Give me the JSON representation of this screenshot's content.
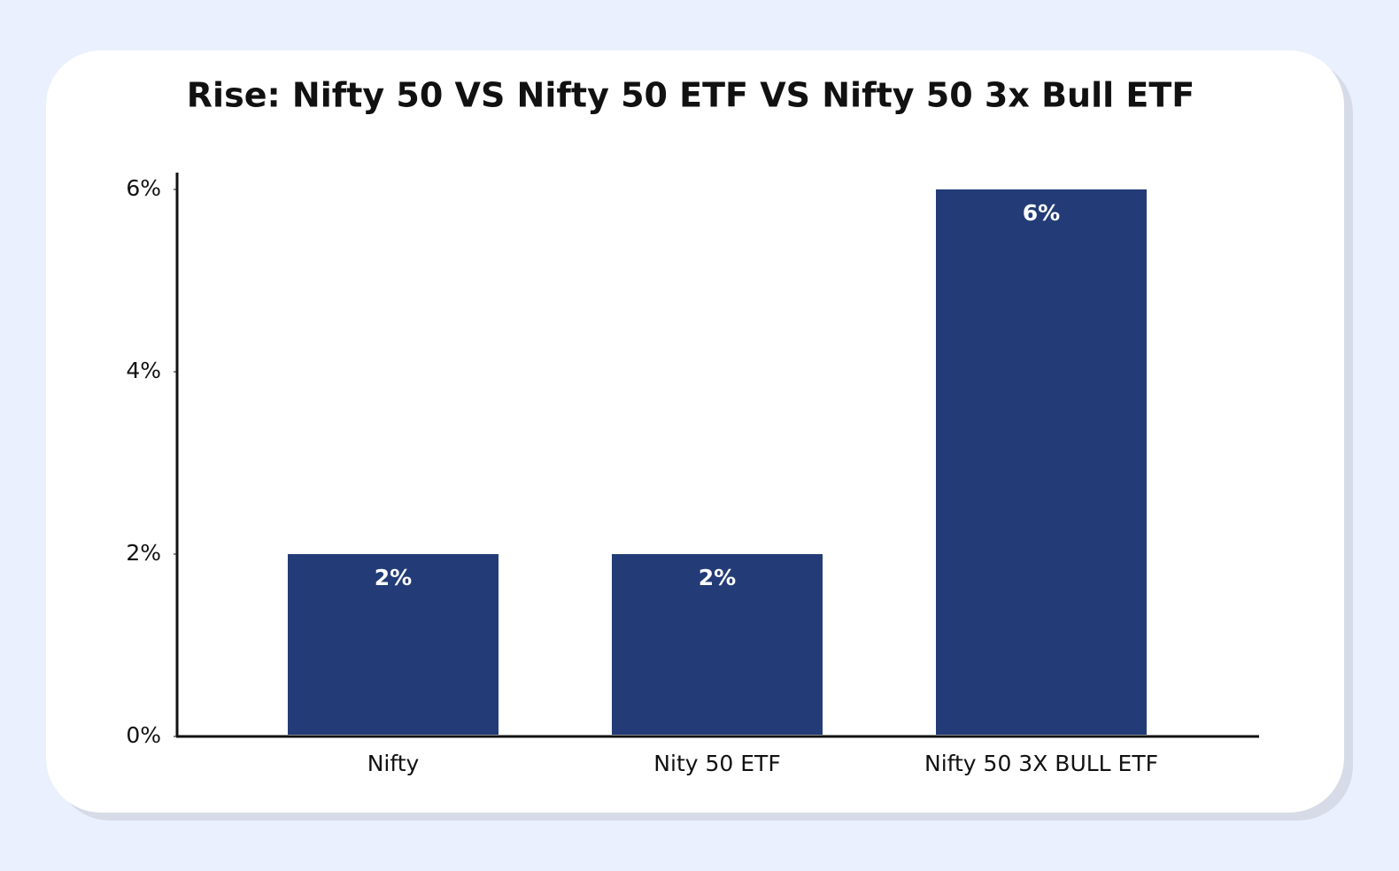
{
  "chart_data": {
    "type": "bar",
    "title": "Rise: Nifty 50 VS Nifty 50 ETF VS Nifty 50 3x Bull ETF",
    "categories": [
      "Nifty",
      "Nity 50 ETF",
      "Nifty 50 3X BULL ETF"
    ],
    "values": [
      2,
      2,
      6
    ],
    "value_labels": [
      "2%",
      "2%",
      "6%"
    ],
    "color": "#233c77",
    "ylim": [
      0,
      6
    ],
    "yticks": [
      {
        "value": 0,
        "label": "0%"
      },
      {
        "value": 2,
        "label": "2%"
      },
      {
        "value": 4,
        "label": "4%"
      },
      {
        "value": 6,
        "label": "6%"
      }
    ],
    "grid": false
  }
}
